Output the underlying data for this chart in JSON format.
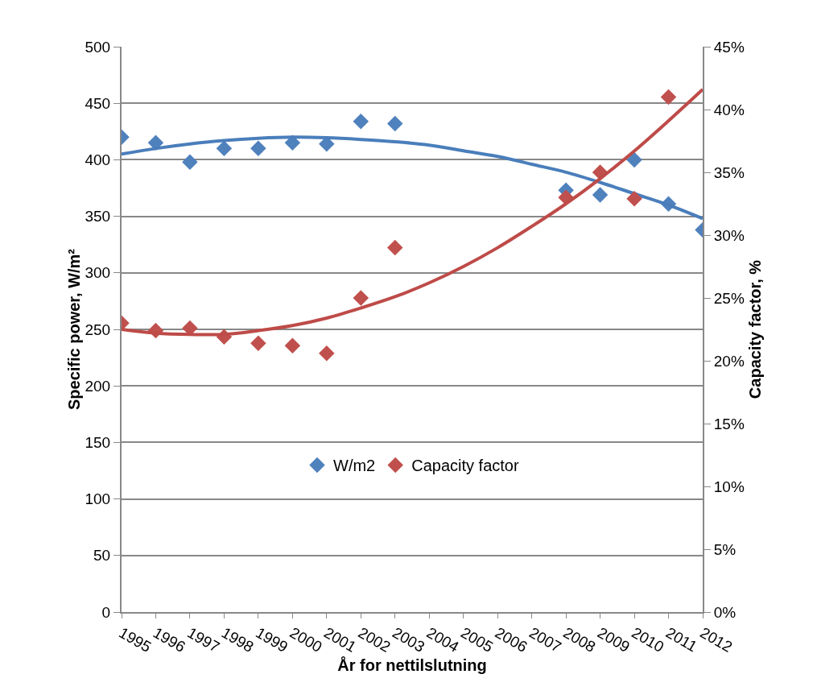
{
  "chart_data": {
    "type": "scatter",
    "xlabel": "År for nettilslutning",
    "ylabel": "Specific power, W/m²",
    "y2label": "Capacity factor, %",
    "x": [
      1995,
      1996,
      1997,
      1998,
      1999,
      2000,
      2001,
      2002,
      2003,
      2008,
      2009,
      2010,
      2011,
      2012
    ],
    "series": [
      {
        "name": "W/m2",
        "color": "#4f81bd",
        "values": [
          420,
          415,
          398,
          410,
          410,
          415,
          414,
          434,
          432,
          373,
          369,
          400,
          361,
          338
        ]
      },
      {
        "name": "Capacity factor",
        "color": "#c0504d",
        "axis": "y2",
        "x": [
          1995,
          1996,
          1997,
          1998,
          1999,
          2000,
          2001,
          2002,
          2003,
          2008,
          2009,
          2010,
          2011
        ],
        "values": [
          23.0,
          22.4,
          22.6,
          21.9,
          21.4,
          21.2,
          20.6,
          25.0,
          29.0,
          33.0,
          35.0,
          32.9,
          41.0
        ]
      },
      {
        "type": "line",
        "color": "#4a7ebb",
        "marker": "none",
        "x": [
          1995,
          1996,
          1997,
          1998,
          1999,
          2000,
          2001,
          2002,
          2003,
          2004,
          2005,
          2006,
          2007,
          2008,
          2009,
          2010,
          2011,
          2012
        ],
        "values": [
          405,
          410,
          414,
          417,
          419,
          420,
          419.5,
          418,
          416,
          413,
          408,
          403,
          396,
          389,
          380,
          370,
          360,
          348
        ]
      },
      {
        "type": "line",
        "color": "#be4b48",
        "marker": "none",
        "axis": "y2",
        "x": [
          1995,
          1996,
          1997,
          1998,
          1999,
          2000,
          2001,
          2002,
          2003,
          2004,
          2005,
          2006,
          2007,
          2008,
          2009,
          2010,
          2011,
          2012
        ],
        "values": [
          22.5,
          22.2,
          22.1,
          22.1,
          22.4,
          22.8,
          23.4,
          24.2,
          25.1,
          26.2,
          27.5,
          29.0,
          30.7,
          32.5,
          34.5,
          36.7,
          39.1,
          41.6
        ]
      }
    ],
    "xlim": [
      1995,
      2012
    ],
    "xticks": [
      1995,
      1996,
      1997,
      1998,
      1999,
      2000,
      2001,
      2002,
      2003,
      2004,
      2005,
      2006,
      2007,
      2008,
      2009,
      2010,
      2011,
      2012
    ],
    "ylim": [
      0,
      500
    ],
    "yticks": [
      0,
      50,
      100,
      150,
      200,
      250,
      300,
      350,
      400,
      450,
      500
    ],
    "y2lim": [
      0,
      45
    ],
    "y2ticks": [
      {
        "value": 0,
        "label": "0%"
      },
      {
        "value": 5,
        "label": "5%"
      },
      {
        "value": 10,
        "label": "10%"
      },
      {
        "value": 15,
        "label": "15%"
      },
      {
        "value": 20,
        "label": "20%"
      },
      {
        "value": 25,
        "label": "25%"
      },
      {
        "value": 30,
        "label": "30%"
      },
      {
        "value": 35,
        "label": "35%"
      },
      {
        "value": 40,
        "label": "40%"
      },
      {
        "value": 45,
        "label": "45%"
      }
    ],
    "grid": "y",
    "legend": "bottom",
    "marker": "diamond"
  }
}
